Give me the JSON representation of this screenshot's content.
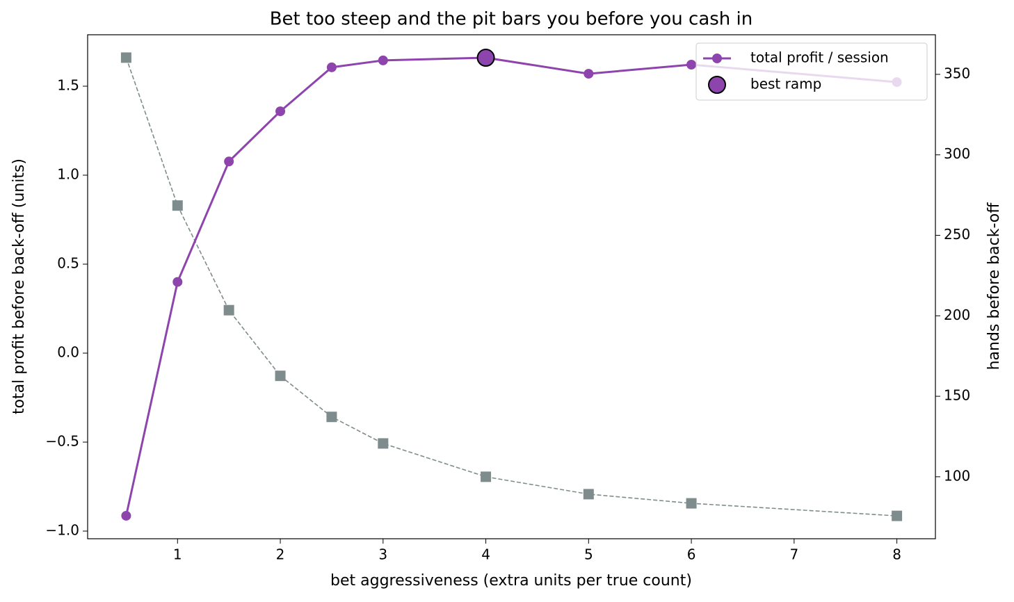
{
  "chart_data": {
    "type": "line",
    "title": "Bet too steep and the pit bars you before you cash in",
    "x_label": "bet aggressiveness (extra units per true count)",
    "y_label": "total profit before back-off (units)",
    "y2_label": "hands before back-off",
    "x": [
      0.5,
      1,
      1.5,
      2,
      2.5,
      3,
      4,
      5,
      6,
      8
    ],
    "series": [
      {
        "name": "total profit / session",
        "color": "#8e44ad",
        "marker": "circle",
        "style": "solid",
        "values": [
          -0.914,
          0.4,
          1.077,
          1.359,
          1.606,
          1.645,
          1.66,
          1.57,
          1.621,
          1.523
        ]
      },
      {
        "color": "#7f8c8d",
        "marker": "square",
        "style": "dashed",
        "axis": "y2",
        "values": [
          360.4,
          268.5,
          203.5,
          162.7,
          137.2,
          120.7,
          100,
          89.2,
          83.5,
          75.7
        ]
      }
    ],
    "highlight": {
      "name": "best ramp",
      "x": 4,
      "y": 1.66,
      "color": "#8e44ad"
    },
    "xlim": [
      0.125,
      8.375
    ],
    "xticks": [
      1,
      2,
      3,
      4,
      5,
      6,
      7,
      8
    ],
    "ylim": [
      -1.043,
      1.789
    ],
    "yticks": [
      {
        "value": -1.0,
        "label": "−1.0"
      },
      {
        "value": -0.5,
        "label": "−0.5"
      },
      {
        "value": 0,
        "label": "0.0"
      },
      0.5,
      {
        "value": 1,
        "label": "1.0"
      },
      1.5
    ],
    "y2lim": [
      61.5,
      374.6
    ],
    "y2ticks": [
      100,
      150,
      200,
      250,
      300,
      350
    ],
    "legend": "upper right",
    "grid": false
  }
}
